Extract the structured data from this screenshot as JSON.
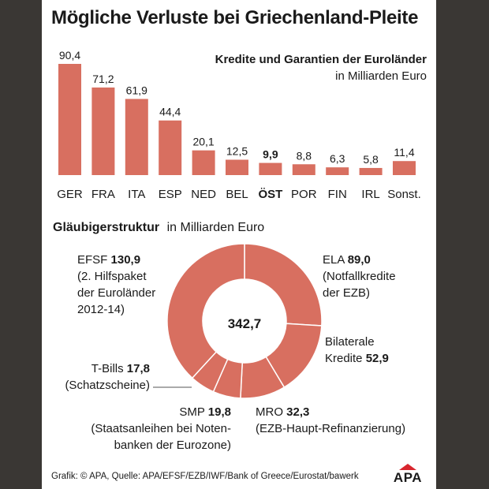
{
  "title": "Mögliche Verluste bei Griechenland-Pleite",
  "colors": {
    "bar": "#d86f60",
    "text": "#1a1a1a",
    "background": "#3a3734",
    "logo_red": "#d8262e"
  },
  "chart_data": [
    {
      "type": "bar",
      "title": "Kredite und Garantien der Euroländer",
      "subtitle": "in Milliarden Euro",
      "categories": [
        "GER",
        "FRA",
        "ITA",
        "ESP",
        "NED",
        "BEL",
        "ÖST",
        "POR",
        "FIN",
        "IRL",
        "Sonst."
      ],
      "values": [
        90.4,
        71.2,
        61.9,
        44.4,
        20.1,
        12.5,
        9.9,
        8.8,
        6.3,
        5.8,
        11.4
      ],
      "value_labels": [
        "90,4",
        "71,2",
        "61,9",
        "44,4",
        "20,1",
        "12,5",
        "9,9",
        "8,8",
        "6,3",
        "5,8",
        "11,4"
      ],
      "highlight": "ÖST",
      "ylim": [
        0,
        90.4
      ]
    },
    {
      "type": "pie",
      "title": "Gläubigerstruktur",
      "subtitle": "in Milliarden Euro",
      "total_label": "342,7",
      "slices": [
        {
          "name": "ELA",
          "value": 89.0,
          "value_label": "89,0",
          "note": [
            "(Notfallkredite",
            "der EZB)"
          ]
        },
        {
          "name": "Bilaterale Kredite",
          "value": 52.9,
          "value_label": "52,9",
          "note": []
        },
        {
          "name": "MRO",
          "value": 32.3,
          "value_label": "32,3",
          "note": [
            "(EZB-Haupt-Refinanzierung)"
          ]
        },
        {
          "name": "SMP",
          "value": 19.8,
          "value_label": "19,8",
          "note": [
            "(Staatsanleihen bei Noten-",
            "banken der Eurozone)"
          ]
        },
        {
          "name": "T-Bills",
          "value": 17.8,
          "value_label": "17,8",
          "note": [
            "(Schatzscheine)"
          ]
        },
        {
          "name": "EFSF",
          "value": 130.9,
          "value_label": "130,9",
          "note": [
            "(2. Hilfspaket",
            "der Euroländer",
            "2012-14)"
          ]
        }
      ]
    }
  ],
  "footer": {
    "source": "Grafik: © APA, Quelle: APA/EFSF/EZB/IWF/Bank of Greece/Eurostat/bawerk"
  },
  "logo": {
    "text": "APA"
  }
}
